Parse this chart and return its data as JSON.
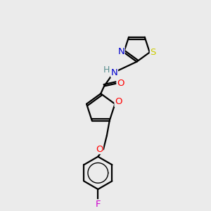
{
  "bg_color": "#ebebeb",
  "atom_colors": {
    "C": "#000000",
    "N": "#0000cc",
    "O": "#ff0000",
    "S": "#cccc00",
    "F": "#cc00cc",
    "H": "#5a9090"
  },
  "figsize": [
    3.0,
    3.0
  ],
  "dpi": 100,
  "lw": 1.6,
  "fontsize": 9.5
}
